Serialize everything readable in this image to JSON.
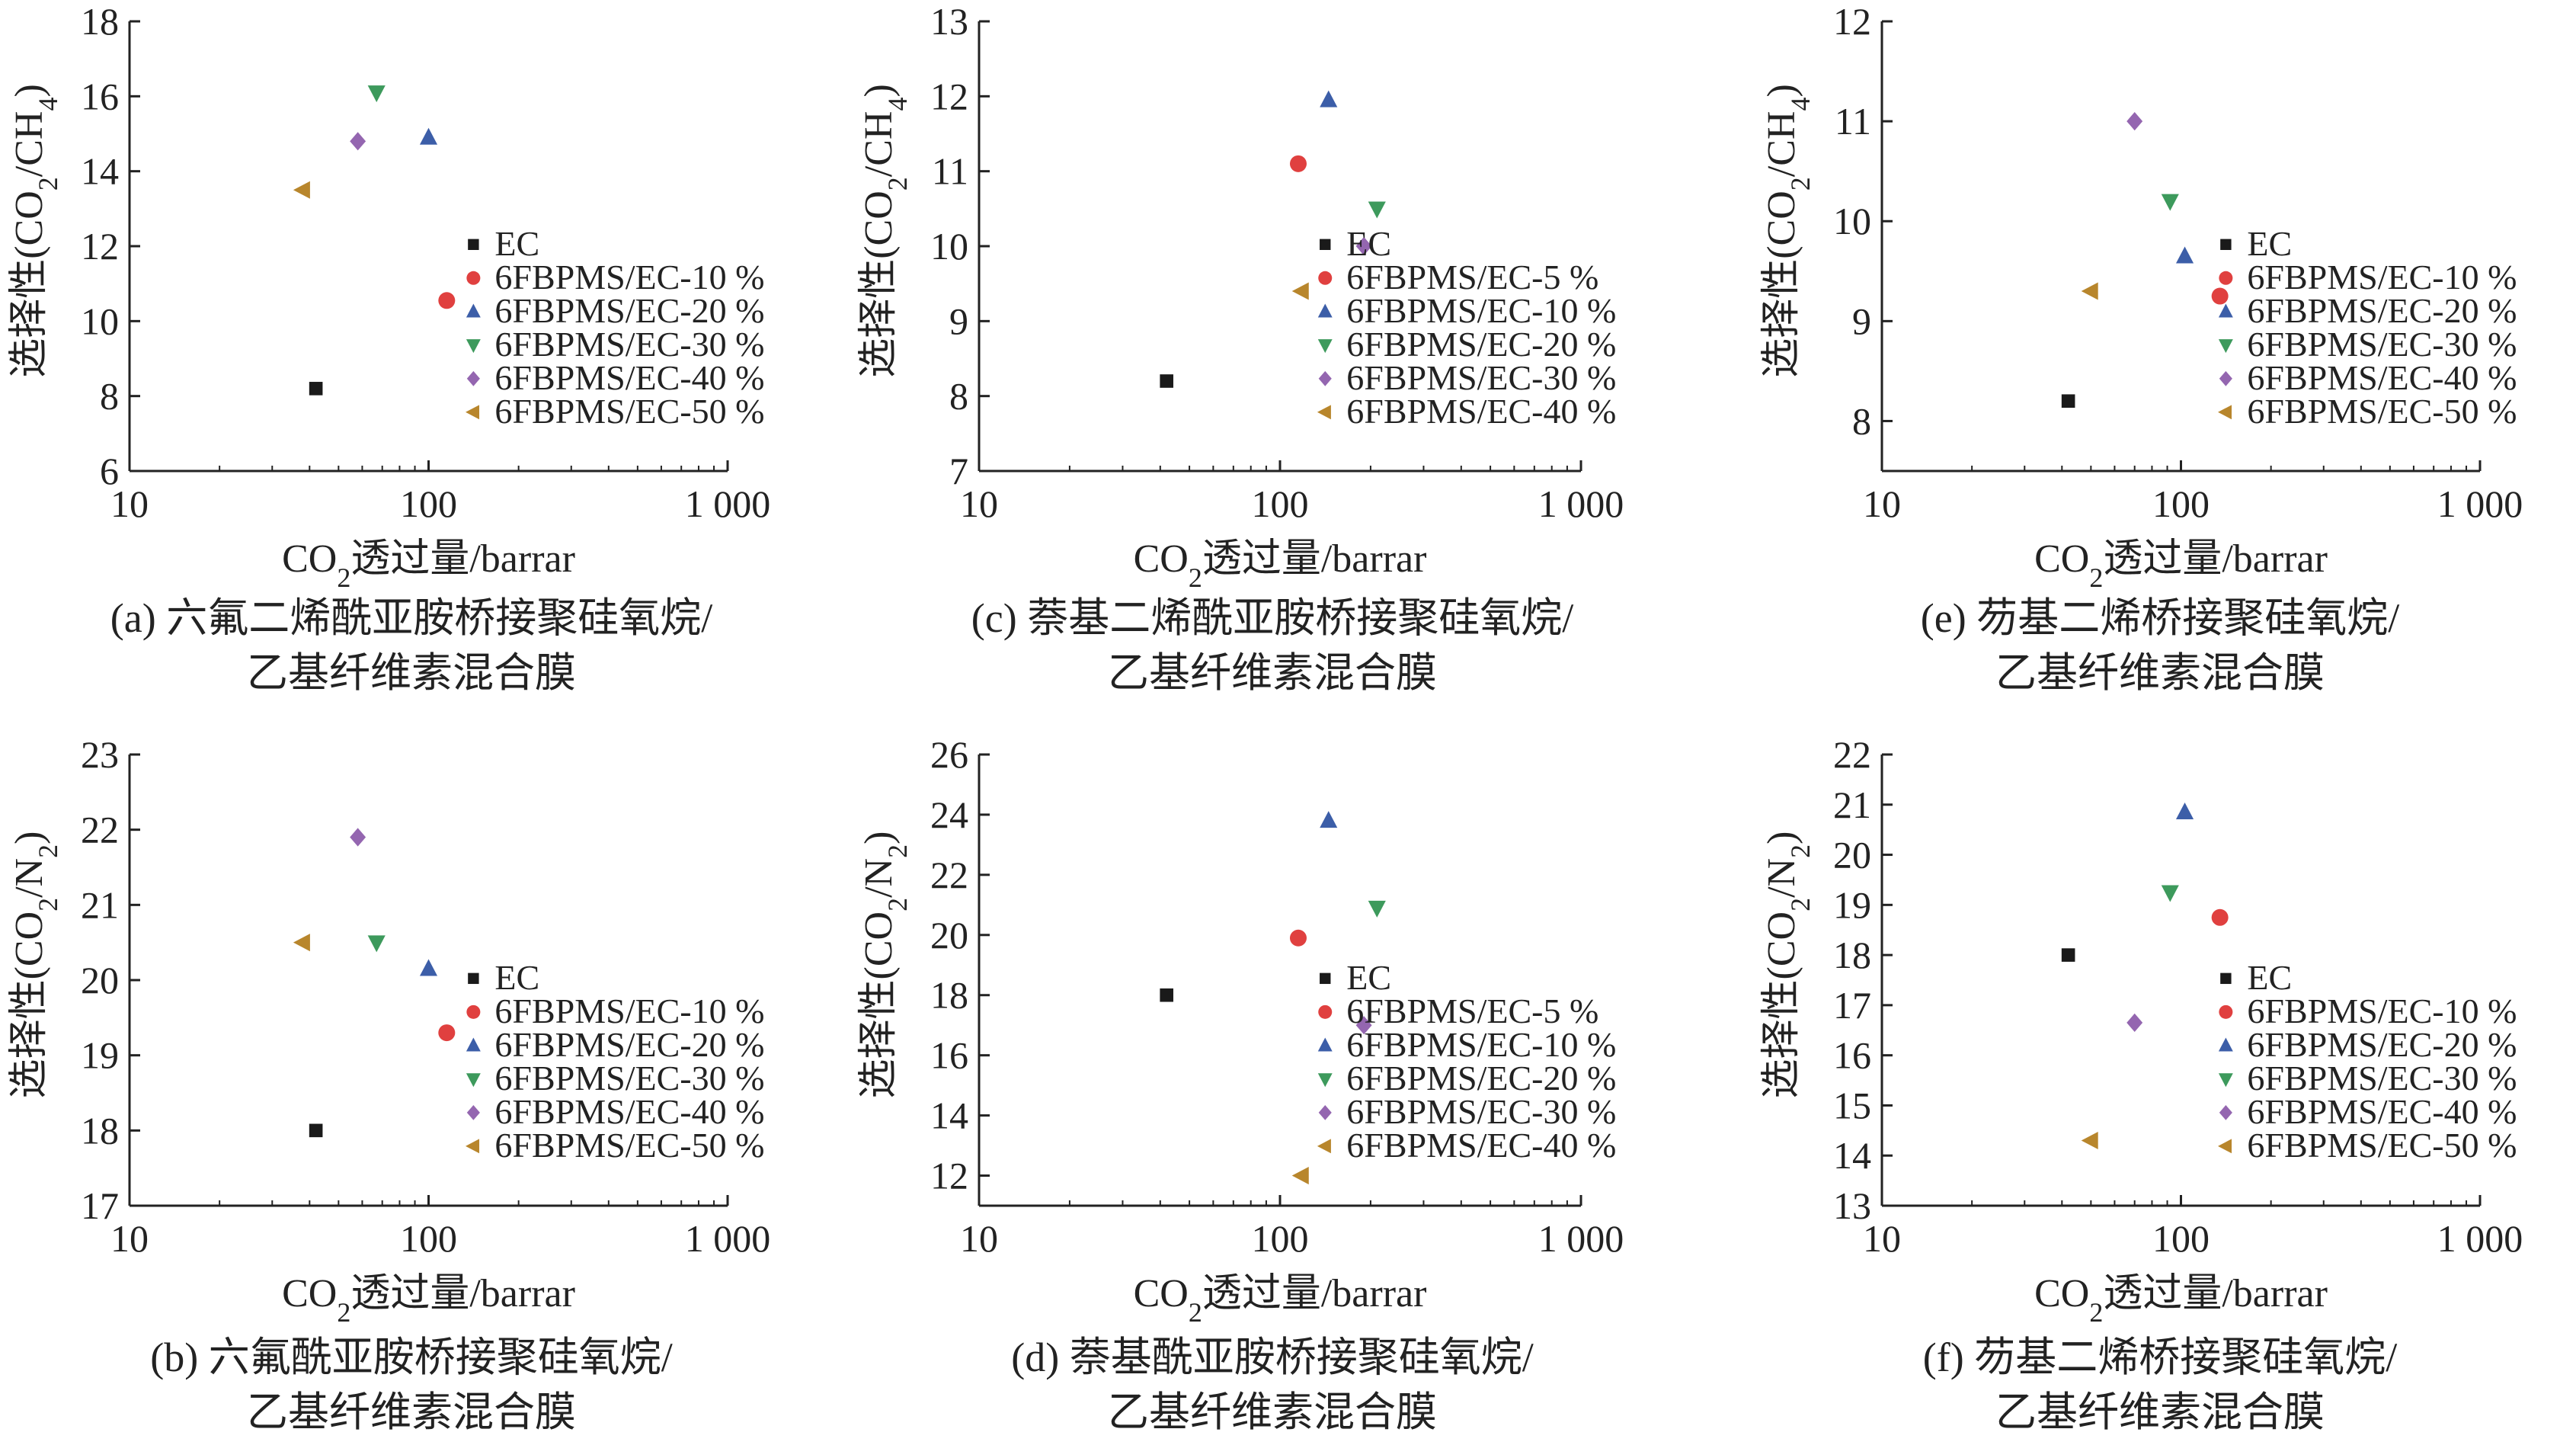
{
  "figure": {
    "panels": [
      {
        "id": "a",
        "caption_line1": "(a) 六氟二烯酰亚胺桥接聚硅氧烷/",
        "caption_line2": "乙基纤维素混合膜",
        "chart_data": {
          "type": "scatter",
          "xscale": "log",
          "xlabel": "CO₂透过量/barrar",
          "ylabel": "选择性(CO₂/CH₄)",
          "xlim": [
            10,
            1000
          ],
          "ylim": [
            6,
            18
          ],
          "xticks": [
            10,
            100,
            1000
          ],
          "xtick_labels": [
            "10",
            "100",
            "1 000"
          ],
          "yticks": [
            6,
            8,
            10,
            12,
            14,
            16,
            18
          ],
          "legend_position": "lower-right",
          "series": [
            {
              "name": "EC",
              "marker": "square",
              "color": "#1a1a1a",
              "x": 42,
              "y": 8.2
            },
            {
              "name": "6FBPMS/EC-10 %",
              "marker": "circle",
              "color": "#e0403f",
              "x": 115,
              "y": 10.55
            },
            {
              "name": "6FBPMS/EC-20 %",
              "marker": "triangle-up",
              "color": "#3c5ea8",
              "x": 100,
              "y": 14.9
            },
            {
              "name": "6FBPMS/EC-30 %",
              "marker": "triangle-down",
              "color": "#3d9a5c",
              "x": 67,
              "y": 16.1
            },
            {
              "name": "6FBPMS/EC-40 %",
              "marker": "diamond",
              "color": "#9466b0",
              "x": 58,
              "y": 14.8
            },
            {
              "name": "6FBPMS/EC-50 %",
              "marker": "triangle-left",
              "color": "#b8862c",
              "x": 38,
              "y": 13.5
            }
          ]
        }
      },
      {
        "id": "c",
        "caption_line1": "(c) 萘基二烯酰亚胺桥接聚硅氧烷/",
        "caption_line2": "乙基纤维素混合膜",
        "chart_data": {
          "type": "scatter",
          "xscale": "log",
          "xlabel": "CO₂透过量/barrar",
          "ylabel": "选择性(CO₂/CH₄)",
          "xlim": [
            10,
            1000
          ],
          "ylim": [
            7,
            13
          ],
          "xticks": [
            10,
            100,
            1000
          ],
          "xtick_labels": [
            "10",
            "100",
            "1 000"
          ],
          "yticks": [
            7,
            8,
            9,
            10,
            11,
            12,
            13
          ],
          "legend_position": "lower-right",
          "series": [
            {
              "name": "EC",
              "marker": "square",
              "color": "#1a1a1a",
              "x": 42,
              "y": 8.2
            },
            {
              "name": "6FBPMS/EC-5 %",
              "marker": "circle",
              "color": "#e0403f",
              "x": 115,
              "y": 11.1
            },
            {
              "name": "6FBPMS/EC-10 %",
              "marker": "triangle-up",
              "color": "#3c5ea8",
              "x": 145,
              "y": 11.95
            },
            {
              "name": "6FBPMS/EC-20 %",
              "marker": "triangle-down",
              "color": "#3d9a5c",
              "x": 210,
              "y": 10.5
            },
            {
              "name": "6FBPMS/EC-30 %",
              "marker": "diamond",
              "color": "#9466b0",
              "x": 190,
              "y": 10.0
            },
            {
              "name": "6FBPMS/EC-40 %",
              "marker": "triangle-left",
              "color": "#b8862c",
              "x": 118,
              "y": 9.4
            }
          ]
        }
      },
      {
        "id": "e",
        "caption_line1": "(e) 芴基二烯桥接聚硅氧烷/",
        "caption_line2": "乙基纤维素混合膜",
        "chart_data": {
          "type": "scatter",
          "xscale": "log",
          "xlabel": "CO₂透过量/barrar",
          "ylabel": "选择性(CO₂/CH₄)",
          "xlim": [
            10,
            1000
          ],
          "ylim": [
            7.5,
            12
          ],
          "xticks": [
            10,
            100,
            1000
          ],
          "xtick_labels": [
            "10",
            "100",
            "1 000"
          ],
          "yticks": [
            8,
            9,
            10,
            11,
            12
          ],
          "legend_position": "lower-right",
          "series": [
            {
              "name": "EC",
              "marker": "square",
              "color": "#1a1a1a",
              "x": 42,
              "y": 8.2
            },
            {
              "name": "6FBPMS/EC-10 %",
              "marker": "circle",
              "color": "#e0403f",
              "x": 135,
              "y": 9.25
            },
            {
              "name": "6FBPMS/EC-20 %",
              "marker": "triangle-up",
              "color": "#3c5ea8",
              "x": 103,
              "y": 9.65
            },
            {
              "name": "6FBPMS/EC-30 %",
              "marker": "triangle-down",
              "color": "#3d9a5c",
              "x": 92,
              "y": 10.2
            },
            {
              "name": "6FBPMS/EC-40 %",
              "marker": "diamond",
              "color": "#9466b0",
              "x": 70,
              "y": 11.0
            },
            {
              "name": "6FBPMS/EC-50 %",
              "marker": "triangle-left",
              "color": "#b8862c",
              "x": 50,
              "y": 9.3
            }
          ]
        }
      },
      {
        "id": "b",
        "caption_line1": "(b) 六氟酰亚胺桥接聚硅氧烷/",
        "caption_line2": "乙基纤维素混合膜",
        "chart_data": {
          "type": "scatter",
          "xscale": "log",
          "xlabel": "CO₂透过量/barrar",
          "ylabel": "选择性(CO₂/N₂)",
          "xlim": [
            10,
            1000
          ],
          "ylim": [
            17,
            23
          ],
          "xticks": [
            10,
            100,
            1000
          ],
          "xtick_labels": [
            "10",
            "100",
            "1 000"
          ],
          "yticks": [
            17,
            18,
            19,
            20,
            21,
            22,
            23
          ],
          "legend_position": "lower-right",
          "series": [
            {
              "name": "EC",
              "marker": "square",
              "color": "#1a1a1a",
              "x": 42,
              "y": 18.0
            },
            {
              "name": "6FBPMS/EC-10 %",
              "marker": "circle",
              "color": "#e0403f",
              "x": 115,
              "y": 19.3
            },
            {
              "name": "6FBPMS/EC-20 %",
              "marker": "triangle-up",
              "color": "#3c5ea8",
              "x": 100,
              "y": 20.15
            },
            {
              "name": "6FBPMS/EC-30 %",
              "marker": "triangle-down",
              "color": "#3d9a5c",
              "x": 67,
              "y": 20.5
            },
            {
              "name": "6FBPMS/EC-40 %",
              "marker": "diamond",
              "color": "#9466b0",
              "x": 58,
              "y": 21.9
            },
            {
              "name": "6FBPMS/EC-50 %",
              "marker": "triangle-left",
              "color": "#b8862c",
              "x": 38,
              "y": 20.5
            }
          ]
        }
      },
      {
        "id": "d",
        "caption_line1": "(d) 萘基酰亚胺桥接聚硅氧烷/",
        "caption_line2": "乙基纤维素混合膜",
        "chart_data": {
          "type": "scatter",
          "xscale": "log",
          "xlabel": "CO₂透过量/barrar",
          "ylabel": "选择性(CO₂/N₂)",
          "xlim": [
            10,
            1000
          ],
          "ylim": [
            11,
            26
          ],
          "xticks": [
            10,
            100,
            1000
          ],
          "xtick_labels": [
            "10",
            "100",
            "1 000"
          ],
          "yticks": [
            12,
            14,
            16,
            18,
            20,
            22,
            24,
            26
          ],
          "legend_position": "lower-right",
          "series": [
            {
              "name": "EC",
              "marker": "square",
              "color": "#1a1a1a",
              "x": 42,
              "y": 18.0
            },
            {
              "name": "6FBPMS/EC-5 %",
              "marker": "circle",
              "color": "#e0403f",
              "x": 115,
              "y": 19.9
            },
            {
              "name": "6FBPMS/EC-10 %",
              "marker": "triangle-up",
              "color": "#3c5ea8",
              "x": 145,
              "y": 23.8
            },
            {
              "name": "6FBPMS/EC-20 %",
              "marker": "triangle-down",
              "color": "#3d9a5c",
              "x": 210,
              "y": 20.9
            },
            {
              "name": "6FBPMS/EC-30 %",
              "marker": "diamond",
              "color": "#9466b0",
              "x": 190,
              "y": 17.0
            },
            {
              "name": "6FBPMS/EC-40 %",
              "marker": "triangle-left",
              "color": "#b8862c",
              "x": 118,
              "y": 12.0
            }
          ]
        }
      },
      {
        "id": "f",
        "caption_line1": "(f) 芴基二烯桥接聚硅氧烷/",
        "caption_line2": "乙基纤维素混合膜",
        "chart_data": {
          "type": "scatter",
          "xscale": "log",
          "xlabel": "CO₂透过量/barrar",
          "ylabel": "选择性(CO₂/N₂)",
          "xlim": [
            10,
            1000
          ],
          "ylim": [
            13,
            22
          ],
          "xticks": [
            10,
            100,
            1000
          ],
          "xtick_labels": [
            "10",
            "100",
            "1 000"
          ],
          "yticks": [
            13,
            14,
            15,
            16,
            17,
            18,
            19,
            20,
            21,
            22
          ],
          "legend_position": "lower-right",
          "series": [
            {
              "name": "EC",
              "marker": "square",
              "color": "#1a1a1a",
              "x": 42,
              "y": 18.0
            },
            {
              "name": "6FBPMS/EC-10 %",
              "marker": "circle",
              "color": "#e0403f",
              "x": 135,
              "y": 18.75
            },
            {
              "name": "6FBPMS/EC-20 %",
              "marker": "triangle-up",
              "color": "#3c5ea8",
              "x": 103,
              "y": 20.85
            },
            {
              "name": "6FBPMS/EC-30 %",
              "marker": "triangle-down",
              "color": "#3d9a5c",
              "x": 92,
              "y": 19.25
            },
            {
              "name": "6FBPMS/EC-40 %",
              "marker": "diamond",
              "color": "#9466b0",
              "x": 70,
              "y": 16.65
            },
            {
              "name": "6FBPMS/EC-50 %",
              "marker": "triangle-left",
              "color": "#b8862c",
              "x": 50,
              "y": 14.3
            }
          ]
        }
      }
    ]
  }
}
